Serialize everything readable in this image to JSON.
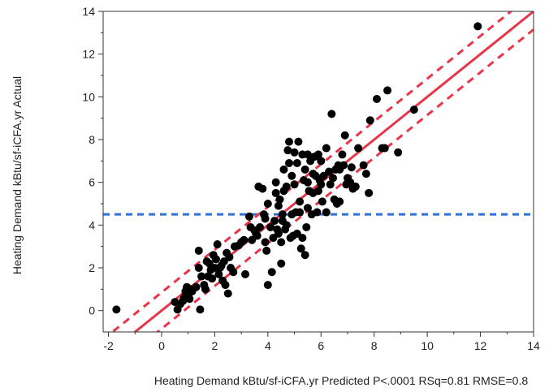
{
  "chart_data": {
    "type": "scatter",
    "title": "",
    "xlabel": "Heating Demand kBtu/sf-iCFA.yr Predicted P<.0001 RSq=0.81 RMSE=0.8",
    "ylabel": "Heating Demand kBtu/sf-iCFA.yr Actual",
    "xlim": [
      -2.2,
      14
    ],
    "ylim": [
      -1,
      14
    ],
    "xticks": [
      "-2",
      "0",
      "2",
      "4",
      "6",
      "8",
      "10",
      "12",
      "14"
    ],
    "yticks": [
      "0",
      "2",
      "4",
      "6",
      "8",
      "10",
      "12",
      "14"
    ],
    "grid": false,
    "mean_line": {
      "y": 4.5,
      "color": "#2e6fd9",
      "style": "dashed"
    },
    "fit_line": {
      "slope": 1.0,
      "intercept": 0.0,
      "color": "#e8354a"
    },
    "confidence_band": {
      "offset": 0.85,
      "color": "#e8354a",
      "style": "dashed"
    },
    "point_color": "#000000",
    "points": [
      [
        -1.7,
        0.05
      ],
      [
        0.5,
        0.4
      ],
      [
        0.6,
        0.05
      ],
      [
        0.7,
        0.3
      ],
      [
        0.8,
        0.45
      ],
      [
        0.85,
        0.6
      ],
      [
        0.9,
        0.9
      ],
      [
        0.95,
        1.1
      ],
      [
        1.0,
        0.7
      ],
      [
        1.05,
        0.55
      ],
      [
        1.1,
        1.0
      ],
      [
        1.15,
        0.9
      ],
      [
        1.3,
        1.1
      ],
      [
        1.4,
        2.0
      ],
      [
        1.4,
        2.8
      ],
      [
        1.45,
        0.05
      ],
      [
        1.5,
        1.6
      ],
      [
        1.6,
        1.2
      ],
      [
        1.65,
        1.0
      ],
      [
        1.7,
        2.3
      ],
      [
        1.75,
        1.6
      ],
      [
        1.8,
        2.2
      ],
      [
        1.85,
        1.9
      ],
      [
        1.9,
        1.5
      ],
      [
        1.95,
        2.6
      ],
      [
        2.0,
        2.0
      ],
      [
        2.05,
        2.4
      ],
      [
        2.1,
        3.1
      ],
      [
        2.15,
        1.7
      ],
      [
        2.2,
        2.0
      ],
      [
        2.25,
        2.1
      ],
      [
        2.3,
        1.4
      ],
      [
        2.35,
        2.3
      ],
      [
        2.4,
        1.2
      ],
      [
        2.45,
        2.7
      ],
      [
        2.5,
        0.8
      ],
      [
        2.55,
        2.5
      ],
      [
        2.6,
        2.0
      ],
      [
        2.7,
        1.8
      ],
      [
        2.75,
        3.0
      ],
      [
        2.9,
        3.05
      ],
      [
        3.0,
        3.2
      ],
      [
        3.1,
        3.3
      ],
      [
        3.15,
        1.7
      ],
      [
        3.3,
        4.4
      ],
      [
        3.35,
        3.9
      ],
      [
        3.4,
        3.3
      ],
      [
        3.5,
        3.75
      ],
      [
        3.55,
        3.6
      ],
      [
        3.6,
        3.5
      ],
      [
        3.65,
        5.8
      ],
      [
        3.7,
        3.9
      ],
      [
        3.8,
        5.7
      ],
      [
        3.85,
        4.5
      ],
      [
        3.9,
        3.2
      ],
      [
        3.9,
        4.3
      ],
      [
        3.95,
        2.8
      ],
      [
        4.0,
        1.2
      ],
      [
        4.0,
        5.0
      ],
      [
        4.1,
        3.9
      ],
      [
        4.15,
        1.8
      ],
      [
        4.2,
        3.4
      ],
      [
        4.25,
        4.2
      ],
      [
        4.3,
        5.5
      ],
      [
        4.3,
        6.0
      ],
      [
        4.35,
        3.8
      ],
      [
        4.4,
        3.6
      ],
      [
        4.4,
        4.9
      ],
      [
        4.45,
        5.2
      ],
      [
        4.5,
        2.2
      ],
      [
        4.5,
        3.2
      ],
      [
        4.55,
        4.2
      ],
      [
        4.55,
        4.5
      ],
      [
        4.6,
        5.6
      ],
      [
        4.6,
        6.6
      ],
      [
        4.65,
        3.8
      ],
      [
        4.7,
        4.0
      ],
      [
        4.7,
        5.8
      ],
      [
        4.75,
        7.5
      ],
      [
        4.8,
        6.9
      ],
      [
        4.8,
        7.9
      ],
      [
        4.85,
        3.4
      ],
      [
        4.9,
        4.5
      ],
      [
        4.9,
        6.3
      ],
      [
        4.95,
        3.5
      ],
      [
        5.0,
        5.9
      ],
      [
        5.0,
        7.4
      ],
      [
        5.05,
        4.6
      ],
      [
        5.1,
        3.6
      ],
      [
        5.1,
        6.9
      ],
      [
        5.15,
        7.9
      ],
      [
        5.2,
        5.1
      ],
      [
        5.2,
        4.6
      ],
      [
        5.25,
        2.9
      ],
      [
        5.3,
        3.4
      ],
      [
        5.3,
        7.3
      ],
      [
        5.35,
        6.1
      ],
      [
        5.4,
        6.6
      ],
      [
        5.4,
        2.6
      ],
      [
        5.45,
        3.9
      ],
      [
        5.5,
        4.8
      ],
      [
        5.5,
        6.0
      ],
      [
        5.5,
        7.3
      ],
      [
        5.55,
        5.6
      ],
      [
        5.6,
        7.0
      ],
      [
        5.65,
        4.5
      ],
      [
        5.7,
        5.5
      ],
      [
        5.7,
        6.4
      ],
      [
        5.75,
        7.2
      ],
      [
        5.8,
        6.3
      ],
      [
        5.85,
        4.6
      ],
      [
        5.9,
        5.6
      ],
      [
        5.9,
        7.3
      ],
      [
        5.95,
        6.1
      ],
      [
        6.0,
        5.9
      ],
      [
        6.0,
        7.0
      ],
      [
        6.05,
        5.1
      ],
      [
        6.1,
        6.3
      ],
      [
        6.2,
        4.6
      ],
      [
        6.2,
        7.6
      ],
      [
        6.3,
        6.5
      ],
      [
        6.35,
        5.9
      ],
      [
        6.4,
        9.2
      ],
      [
        6.45,
        6.2
      ],
      [
        6.5,
        5.2
      ],
      [
        6.55,
        6.6
      ],
      [
        6.6,
        5.0
      ],
      [
        6.65,
        6.8
      ],
      [
        6.7,
        5.1
      ],
      [
        6.7,
        6.6
      ],
      [
        6.8,
        7.3
      ],
      [
        6.85,
        6.8
      ],
      [
        6.9,
        8.2
      ],
      [
        6.95,
        5.9
      ],
      [
        7.0,
        6.2
      ],
      [
        7.1,
        6.0
      ],
      [
        7.15,
        6.7
      ],
      [
        7.2,
        5.7
      ],
      [
        7.3,
        5.8
      ],
      [
        7.4,
        7.6
      ],
      [
        7.6,
        6.8
      ],
      [
        7.7,
        6.4
      ],
      [
        7.8,
        5.5
      ],
      [
        7.85,
        8.9
      ],
      [
        8.1,
        9.9
      ],
      [
        8.3,
        7.6
      ],
      [
        8.4,
        7.6
      ],
      [
        8.5,
        10.3
      ],
      [
        8.9,
        7.4
      ],
      [
        9.5,
        9.4
      ],
      [
        11.9,
        13.3
      ]
    ]
  }
}
